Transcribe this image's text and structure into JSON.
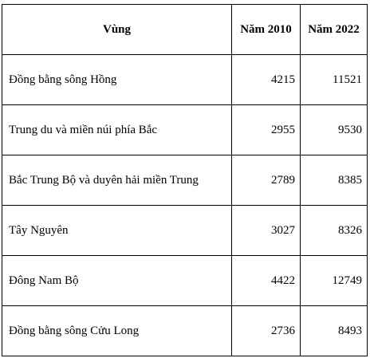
{
  "table": {
    "headers": [
      "Vùng",
      "Năm 2010",
      "Năm 2022"
    ],
    "rows": [
      {
        "region": "Đồng bằng sông Hồng",
        "y2010": "4215",
        "y2022": "11521"
      },
      {
        "region": "Trung du và miền núi phía Bắc",
        "y2010": "2955",
        "y2022": "9530"
      },
      {
        "region": "Bắc Trung Bộ và duyên hải miền Trung",
        "y2010": "2789",
        "y2022": "8385"
      },
      {
        "region": "Tây Nguyên",
        "y2010": "3027",
        "y2022": "8326"
      },
      {
        "region": "Đông Nam Bộ",
        "y2010": "4422",
        "y2022": "12749"
      },
      {
        "region": "Đồng bằng sông Cửu Long",
        "y2010": "2736",
        "y2022": "8493"
      }
    ]
  }
}
